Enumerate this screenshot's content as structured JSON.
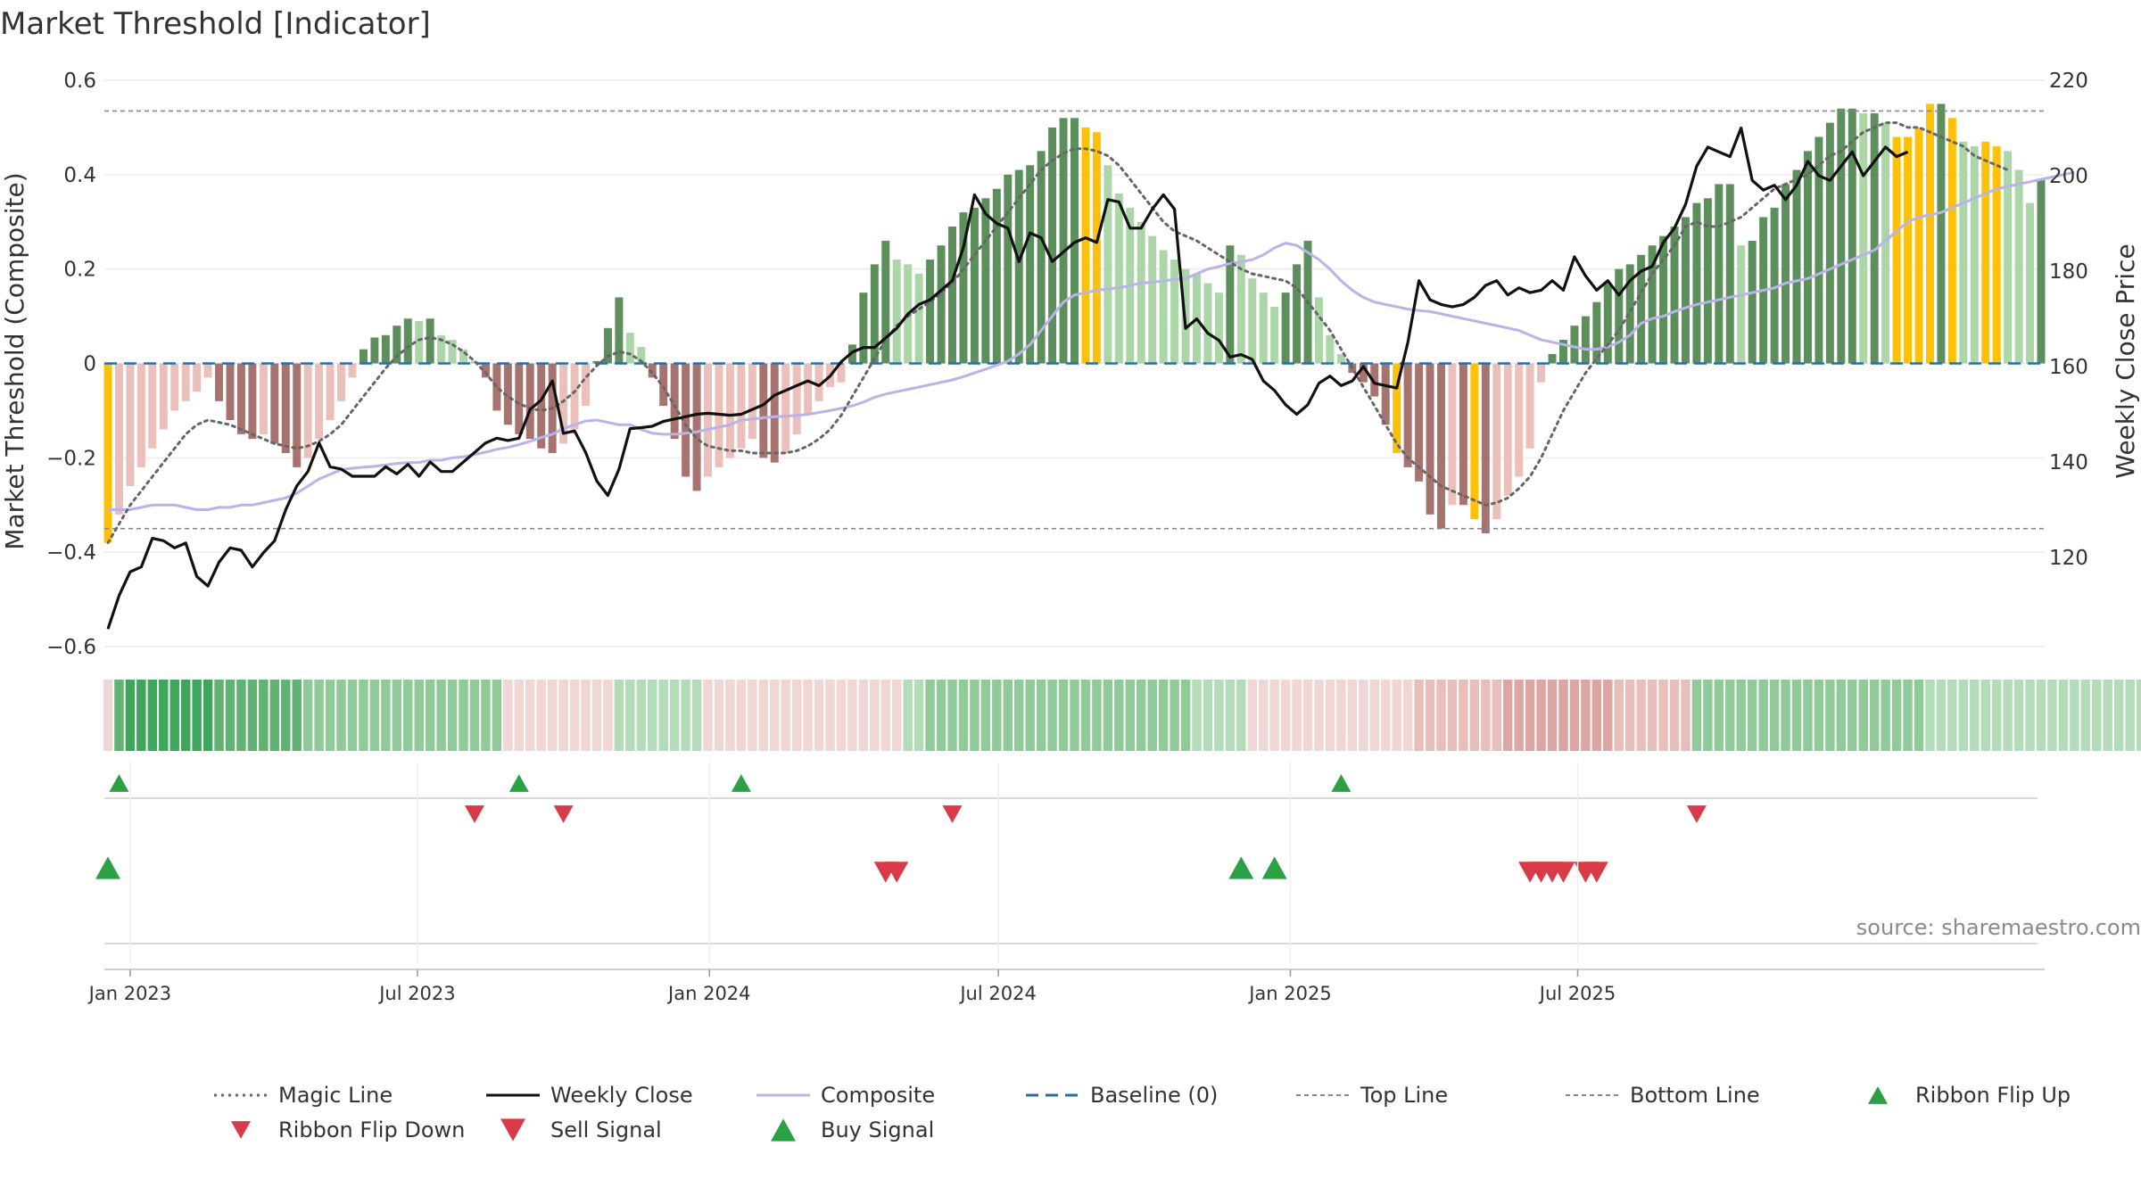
{
  "chart_data": {
    "type": "bar",
    "title": "Market Threshold [Indicator]",
    "ylabel_left": "Market Threshold (Composite)",
    "ylabel_right": "Weekly Close Price",
    "left_ylim": [
      -0.6,
      0.6
    ],
    "left_yticks": [
      -0.6,
      -0.4,
      -0.2,
      0,
      0.2,
      0.4,
      0.6
    ],
    "left_ytick_labels": [
      "−0.6",
      "−0.4",
      "−0.2",
      "0",
      "0.2",
      "0.4",
      "0.6"
    ],
    "right_ylim": [
      100,
      220
    ],
    "right_yticks": [
      120,
      140,
      160,
      180,
      200,
      220
    ],
    "right_ytick_labels": [
      "120",
      "140",
      "160",
      "180",
      "200",
      "220"
    ],
    "x_ticks": [
      "2023-01-01",
      "2023-07-01",
      "2024-01-01",
      "2024-07-01",
      "2025-01-01",
      "2025-07-01"
    ],
    "x_tick_labels": [
      "Jan 2023",
      "Jul 2023",
      "Jan 2024",
      "Jul 2024",
      "Jan 2025",
      "Jul 2025"
    ],
    "start_date": "2022-12-18",
    "top_line": 0.535,
    "bottom_line": -0.35,
    "baseline": 0,
    "grid": true,
    "legend_position": "bottom",
    "source_text": "source: sharemaestro.com",
    "colors": {
      "strong_green": "#5c8f5c",
      "light_green": "#acd6a8",
      "strong_red": "#a7736f",
      "light_red": "#ebbfba",
      "signal_yellow": "#ffc107",
      "weekly_close": "#111111",
      "composite": "#b9b3e8",
      "magic_line": "#666666",
      "baseline": "#2a6e9e",
      "threshold_line": "#888888",
      "buy_green": "#2ca045",
      "sell_red": "#d93a48"
    },
    "composite_bars": [
      -0.38,
      -0.32,
      -0.26,
      -0.22,
      -0.18,
      -0.14,
      -0.1,
      -0.08,
      -0.06,
      -0.03,
      -0.08,
      -0.12,
      -0.15,
      -0.16,
      -0.15,
      -0.17,
      -0.19,
      -0.22,
      -0.2,
      -0.16,
      -0.12,
      -0.08,
      -0.03,
      0.03,
      0.055,
      0.06,
      0.08,
      0.095,
      0.09,
      0.095,
      0.06,
      0.05,
      0.03,
      0.005,
      -0.03,
      -0.1,
      -0.13,
      -0.15,
      -0.16,
      -0.18,
      -0.19,
      -0.17,
      -0.14,
      -0.09,
      0.005,
      0.075,
      0.14,
      0.065,
      0.035,
      -0.03,
      -0.09,
      -0.16,
      -0.24,
      -0.27,
      -0.24,
      -0.22,
      -0.2,
      -0.18,
      -0.16,
      -0.2,
      -0.21,
      -0.19,
      -0.15,
      -0.11,
      -0.08,
      -0.05,
      -0.04,
      0.04,
      0.15,
      0.21,
      0.26,
      0.22,
      0.21,
      0.19,
      0.22,
      0.25,
      0.29,
      0.32,
      0.33,
      0.35,
      0.37,
      0.4,
      0.41,
      0.42,
      0.45,
      0.5,
      0.52,
      0.52,
      0.5,
      0.49,
      0.42,
      0.36,
      0.33,
      0.3,
      0.27,
      0.24,
      0.22,
      0.2,
      0.19,
      0.17,
      0.15,
      0.25,
      0.23,
      0.18,
      0.15,
      0.12,
      0.15,
      0.21,
      0.26,
      0.14,
      0.06,
      0.02,
      -0.02,
      -0.04,
      -0.07,
      -0.13,
      -0.19,
      -0.22,
      -0.25,
      -0.32,
      -0.35,
      -0.3,
      -0.3,
      -0.33,
      -0.36,
      -0.33,
      -0.28,
      -0.24,
      -0.18,
      -0.04,
      0.02,
      0.05,
      0.08,
      0.1,
      0.13,
      0.17,
      0.2,
      0.21,
      0.23,
      0.25,
      0.27,
      0.29,
      0.31,
      0.34,
      0.35,
      0.38,
      0.38,
      0.25,
      0.26,
      0.31,
      0.33,
      0.38,
      0.41,
      0.45,
      0.48,
      0.51,
      0.54,
      0.54,
      0.53,
      0.53,
      0.51,
      0.48,
      0.48,
      0.5,
      0.55,
      0.55,
      0.52,
      0.47,
      0.46,
      0.47,
      0.46,
      0.45,
      0.41,
      0.34,
      0.39
    ],
    "signal_bar_indices": [
      0,
      88,
      89,
      116,
      123,
      161,
      162,
      163,
      164,
      166,
      169,
      170
    ],
    "weekly_close": [
      105,
      112,
      117,
      118,
      124,
      123.5,
      122,
      123,
      116,
      114,
      119,
      122,
      121.5,
      118,
      121,
      123.5,
      130,
      135,
      138,
      144,
      139,
      138.5,
      137,
      137,
      137,
      139,
      137.5,
      139.5,
      137,
      140,
      138,
      138,
      140,
      142,
      144,
      145,
      144.5,
      145,
      151,
      153,
      157,
      146,
      146.5,
      142,
      136,
      133,
      138.5,
      147,
      147.2,
      147.5,
      148.5,
      149,
      149.5,
      150,
      150.2,
      150,
      149.8,
      150,
      151,
      152,
      154,
      155,
      156,
      157,
      156,
      158,
      161,
      163,
      164,
      164,
      166,
      168,
      171,
      173,
      174,
      176,
      178,
      185,
      196,
      192,
      190,
      189,
      182,
      188,
      187,
      182,
      184,
      186,
      187,
      186,
      195,
      194.5,
      189,
      189,
      193,
      196,
      193,
      168,
      170,
      167,
      165.5,
      162,
      162.5,
      161.5,
      157,
      155,
      152,
      150,
      152,
      156.5,
      158,
      156,
      157,
      160,
      156.5,
      156,
      155.5,
      165,
      178,
      174,
      173,
      172.5,
      173,
      174.5,
      177,
      178,
      175,
      176.5,
      175.5,
      176,
      178,
      176,
      183,
      179,
      176,
      178,
      175,
      178,
      180,
      181,
      186,
      189,
      194,
      202,
      206,
      205,
      204,
      210,
      199,
      197,
      198,
      195,
      198,
      203,
      200,
      199,
      202,
      205,
      200,
      203,
      206,
      204,
      205
    ],
    "composite_line": [
      -0.31,
      -0.31,
      -0.31,
      -0.305,
      -0.3,
      -0.3,
      -0.3,
      -0.305,
      -0.31,
      -0.31,
      -0.305,
      -0.305,
      -0.3,
      -0.3,
      -0.295,
      -0.29,
      -0.285,
      -0.275,
      -0.26,
      -0.245,
      -0.235,
      -0.225,
      -0.222,
      -0.22,
      -0.218,
      -0.215,
      -0.212,
      -0.21,
      -0.21,
      -0.205,
      -0.205,
      -0.2,
      -0.198,
      -0.193,
      -0.188,
      -0.182,
      -0.178,
      -0.172,
      -0.165,
      -0.157,
      -0.15,
      -0.138,
      -0.13,
      -0.122,
      -0.12,
      -0.125,
      -0.13,
      -0.13,
      -0.14,
      -0.148,
      -0.15,
      -0.15,
      -0.148,
      -0.145,
      -0.14,
      -0.135,
      -0.13,
      -0.12,
      -0.118,
      -0.115,
      -0.113,
      -0.112,
      -0.11,
      -0.108,
      -0.104,
      -0.1,
      -0.095,
      -0.09,
      -0.082,
      -0.072,
      -0.065,
      -0.06,
      -0.055,
      -0.05,
      -0.045,
      -0.04,
      -0.035,
      -0.028,
      -0.02,
      -0.012,
      -0.004,
      0.005,
      0.02,
      0.04,
      0.07,
      0.1,
      0.13,
      0.145,
      0.15,
      0.155,
      0.158,
      0.16,
      0.165,
      0.17,
      0.172,
      0.175,
      0.178,
      0.18,
      0.19,
      0.2,
      0.205,
      0.212,
      0.215,
      0.22,
      0.23,
      0.245,
      0.255,
      0.25,
      0.235,
      0.22,
      0.2,
      0.175,
      0.155,
      0.14,
      0.13,
      0.125,
      0.12,
      0.115,
      0.112,
      0.11,
      0.105,
      0.1,
      0.095,
      0.09,
      0.085,
      0.08,
      0.075,
      0.07,
      0.06,
      0.05,
      0.045,
      0.04,
      0.035,
      0.03,
      0.03,
      0.035,
      0.045,
      0.06,
      0.085,
      0.095,
      0.1,
      0.11,
      0.118,
      0.125,
      0.13,
      0.135,
      0.14,
      0.145,
      0.15,
      0.155,
      0.16,
      0.17,
      0.175,
      0.18,
      0.19,
      0.2,
      0.21,
      0.22,
      0.23,
      0.24,
      0.26,
      0.28,
      0.3,
      0.31,
      0.315,
      0.32,
      0.33,
      0.34,
      0.35,
      0.36,
      0.37,
      0.375,
      0.38,
      0.385,
      0.39,
      0.395,
      0.4,
      0.405
    ],
    "magic_line": [
      -0.38,
      -0.34,
      -0.3,
      -0.27,
      -0.24,
      -0.21,
      -0.18,
      -0.15,
      -0.13,
      -0.12,
      -0.125,
      -0.13,
      -0.14,
      -0.15,
      -0.16,
      -0.17,
      -0.175,
      -0.18,
      -0.175,
      -0.165,
      -0.15,
      -0.13,
      -0.1,
      -0.07,
      -0.04,
      -0.01,
      0.015,
      0.035,
      0.05,
      0.055,
      0.05,
      0.04,
      0.025,
      0.005,
      -0.02,
      -0.05,
      -0.07,
      -0.085,
      -0.095,
      -0.1,
      -0.095,
      -0.08,
      -0.06,
      -0.03,
      -0.005,
      0.015,
      0.025,
      0.02,
      0.005,
      -0.02,
      -0.05,
      -0.09,
      -0.13,
      -0.16,
      -0.175,
      -0.18,
      -0.185,
      -0.185,
      -0.19,
      -0.19,
      -0.19,
      -0.19,
      -0.185,
      -0.175,
      -0.16,
      -0.14,
      -0.11,
      -0.07,
      -0.03,
      0.01,
      0.05,
      0.08,
      0.1,
      0.115,
      0.13,
      0.15,
      0.17,
      0.2,
      0.23,
      0.26,
      0.29,
      0.32,
      0.35,
      0.38,
      0.41,
      0.43,
      0.445,
      0.455,
      0.455,
      0.45,
      0.44,
      0.42,
      0.39,
      0.36,
      0.33,
      0.3,
      0.28,
      0.27,
      0.26,
      0.245,
      0.23,
      0.215,
      0.2,
      0.19,
      0.185,
      0.18,
      0.175,
      0.16,
      0.13,
      0.1,
      0.07,
      0.03,
      -0.01,
      -0.05,
      -0.09,
      -0.13,
      -0.17,
      -0.2,
      -0.22,
      -0.24,
      -0.26,
      -0.27,
      -0.28,
      -0.29,
      -0.3,
      -0.295,
      -0.285,
      -0.265,
      -0.24,
      -0.2,
      -0.15,
      -0.1,
      -0.06,
      -0.02,
      0.01,
      0.04,
      0.07,
      0.11,
      0.15,
      0.19,
      0.22,
      0.25,
      0.29,
      0.3,
      0.29,
      0.29,
      0.3,
      0.31,
      0.33,
      0.35,
      0.37,
      0.38,
      0.39,
      0.4,
      0.42,
      0.44,
      0.45,
      0.47,
      0.49,
      0.5,
      0.51,
      0.51,
      0.5,
      0.5,
      0.49,
      0.48,
      0.47,
      0.46,
      0.44,
      0.43,
      0.42,
      0.41
    ],
    "ribbon_levels": [
      -1,
      3,
      4,
      4,
      4,
      4,
      4,
      4,
      4,
      4,
      3,
      3,
      3,
      3,
      3,
      3,
      3,
      3,
      2,
      2,
      2,
      2,
      2,
      2,
      2,
      2,
      2,
      2,
      2,
      2,
      2,
      2,
      2,
      2,
      2,
      2,
      -1,
      -1,
      -1,
      -1,
      -1,
      -1,
      -1,
      -1,
      -1,
      -1,
      1,
      1,
      1,
      1,
      1,
      1,
      1,
      1,
      -1,
      -1,
      -1,
      -1,
      -1,
      -1,
      -1,
      -1,
      -1,
      -1,
      -1,
      -1,
      -1,
      -1,
      -1,
      -1,
      -1,
      -1,
      1,
      1,
      2,
      2,
      2,
      2,
      2,
      2,
      2,
      2,
      2,
      2,
      2,
      2,
      2,
      2,
      2,
      2,
      2,
      2,
      2,
      2,
      2,
      2,
      2,
      2,
      1,
      1,
      1,
      1,
      1,
      -1,
      -1,
      -1,
      -1,
      -1,
      -1,
      -1,
      -1,
      -1,
      -1,
      -1,
      -1,
      -1,
      -1,
      -1,
      -2,
      -2,
      -2,
      -2,
      -2,
      -2,
      -2,
      -2,
      -3,
      -3,
      -3,
      -3,
      -3,
      -3,
      -3,
      -3,
      -3,
      -3,
      -2,
      -2,
      -2,
      -2,
      -2,
      -2,
      -2,
      2,
      2,
      2,
      2,
      2,
      2,
      2,
      2,
      2,
      2,
      2,
      2,
      2,
      2,
      2,
      2,
      2,
      2,
      2,
      2,
      2,
      1,
      1,
      1,
      1,
      1,
      1,
      1,
      1,
      1,
      1,
      1,
      1,
      1,
      1,
      1,
      1,
      1,
      1,
      1,
      1,
      1,
      1,
      1,
      1,
      1,
      1,
      1,
      -1,
      -1,
      -1,
      -1
    ],
    "ribbon_flip_up": [
      "2022-12-25",
      "2023-09-03",
      "2024-01-21",
      "2025-02-02"
    ],
    "ribbon_flip_down": [
      "2023-08-06",
      "2023-10-01",
      "2024-06-02",
      "2025-09-14"
    ],
    "buy_signal": [
      "2022-12-18",
      "2024-12-01",
      "2024-12-22"
    ],
    "sell_signal": [
      "2024-04-21",
      "2024-04-28",
      "2025-06-01",
      "2025-06-08",
      "2025-06-15",
      "2025-06-22",
      "2025-07-06",
      "2025-07-13"
    ],
    "legend": [
      {
        "label": "Magic Line",
        "style": "dotted-line",
        "color": "#666666"
      },
      {
        "label": "Weekly Close",
        "style": "solid-line",
        "color": "#111111"
      },
      {
        "label": "Composite",
        "style": "solid-line",
        "color": "#b9b3e8"
      },
      {
        "label": "Baseline (0)",
        "style": "dashed-line",
        "color": "#2a6e9e"
      },
      {
        "label": "Top Line",
        "style": "dashed-thin-line",
        "color": "#888888"
      },
      {
        "label": "Bottom Line",
        "style": "dashed-thin-line",
        "color": "#888888"
      },
      {
        "label": "Ribbon Flip Up",
        "style": "triangle-up-small",
        "color": "#2ca045"
      },
      {
        "label": "Ribbon Flip Down",
        "style": "triangle-down-small",
        "color": "#d93a48"
      },
      {
        "label": "Sell Signal",
        "style": "triangle-down-large",
        "color": "#d93a48"
      },
      {
        "label": "Buy Signal",
        "style": "triangle-up-large",
        "color": "#2ca045"
      }
    ]
  }
}
